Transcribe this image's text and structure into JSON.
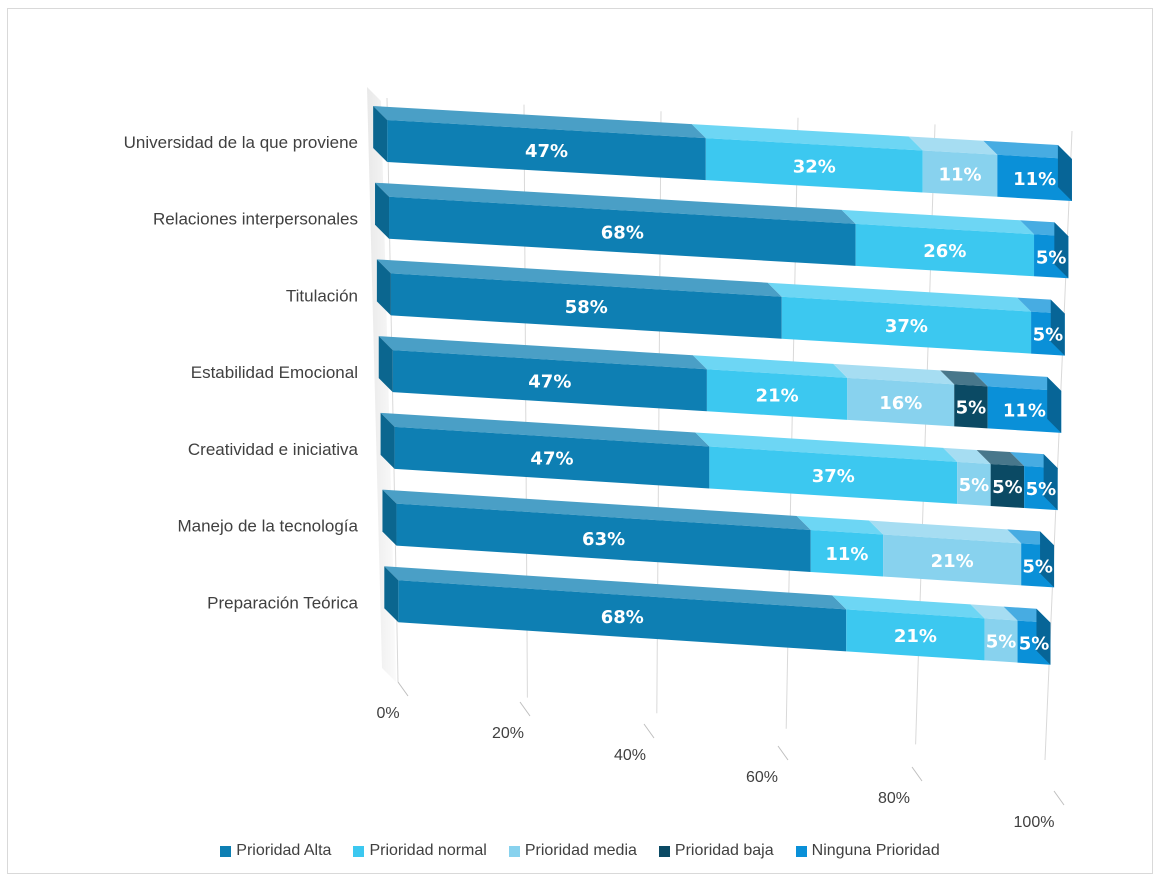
{
  "chart_data": {
    "type": "bar",
    "orientation": "horizontal",
    "stacking": "percent",
    "style": "3d",
    "categories": [
      "Universidad de la que proviene",
      "Relaciones interpersonales",
      "Titulación",
      "Estabilidad Emocional",
      "Creatividad e iniciativa",
      "Manejo de la tecnología",
      "Preparación Teórica"
    ],
    "series": [
      {
        "name": "Prioridad Alta",
        "color": "#0e7fb3",
        "values": [
          47,
          68,
          58,
          47,
          47,
          63,
          68
        ]
      },
      {
        "name": "Prioridad normal",
        "color": "#3cc8f0",
        "values": [
          32,
          26,
          37,
          21,
          37,
          11,
          21
        ]
      },
      {
        "name": "Prioridad media",
        "color": "#88d2ee",
        "values": [
          11,
          0,
          0,
          16,
          5,
          21,
          5
        ]
      },
      {
        "name": "Prioridad baja",
        "color": "#0b4a64",
        "values": [
          0,
          0,
          0,
          5,
          5,
          0,
          0
        ]
      },
      {
        "name": "Ninguna Prioridad",
        "color": "#0a90d8",
        "values": [
          11,
          5,
          5,
          11,
          5,
          5,
          5
        ]
      }
    ],
    "x_ticks": [
      "0%",
      "20%",
      "40%",
      "60%",
      "80%",
      "100%"
    ],
    "xlim": [
      0,
      100
    ],
    "legend_position": "bottom",
    "gridlines": true
  }
}
